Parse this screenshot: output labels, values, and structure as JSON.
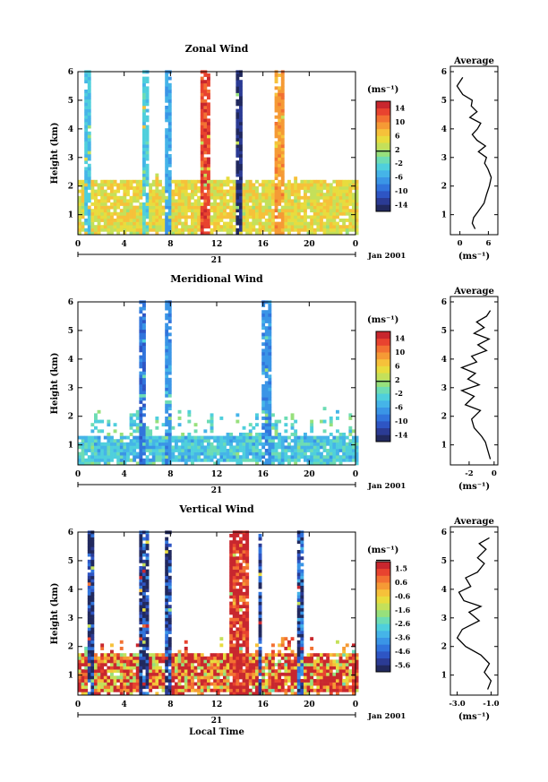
{
  "chart_data": [
    {
      "type": "heatmap",
      "title": "Zonal Wind",
      "ylabel": "Height (km)",
      "xlim": [
        0,
        24
      ],
      "ylim": [
        0.3,
        6
      ],
      "xticks": [
        "0",
        "4",
        "8",
        "12",
        "16",
        "20",
        "0"
      ],
      "yticks": [
        "1",
        "2",
        "3",
        "4",
        "5",
        "6"
      ],
      "date_day": "21",
      "date_label": "Jan 2001",
      "colorbar": {
        "unit": "(ms⁻¹)",
        "ticks": [
          "14",
          "10",
          "6",
          "2",
          "-2",
          "-6",
          "-10",
          "-14"
        ],
        "range": [
          -16,
          16
        ],
        "zero_at": 1.5
      },
      "average": {
        "title": "Average",
        "xlabel": "(ms⁻¹)",
        "xticks": [
          "0",
          "6"
        ],
        "xlim": [
          -2,
          8
        ],
        "profile": [
          [
            3.2,
            0.5
          ],
          [
            2.6,
            0.7
          ],
          [
            2.9,
            0.9
          ],
          [
            3.8,
            1.1
          ],
          [
            5.1,
            1.4
          ],
          [
            5.6,
            1.7
          ],
          [
            6.2,
            2.0
          ],
          [
            6.6,
            2.3
          ],
          [
            5.9,
            2.6
          ],
          [
            5.2,
            2.8
          ],
          [
            5.6,
            3.0
          ],
          [
            3.9,
            3.2
          ],
          [
            5.4,
            3.4
          ],
          [
            3.6,
            3.6
          ],
          [
            2.6,
            3.8
          ],
          [
            3.7,
            4.0
          ],
          [
            4.4,
            4.2
          ],
          [
            2.1,
            4.4
          ],
          [
            3.6,
            4.6
          ],
          [
            2.4,
            4.8
          ],
          [
            2.6,
            5.0
          ],
          [
            0.6,
            5.2
          ],
          [
            -0.6,
            5.5
          ],
          [
            0.6,
            5.8
          ]
        ]
      },
      "model": {
        "base": 4,
        "bandFrom": 0.4,
        "bandTo": 2.2,
        "bandVal": 5,
        "bands": [
          [
            10.5,
            11.5,
            13
          ],
          [
            13.7,
            14.2,
            -14
          ],
          [
            0.6,
            1.0,
            -4
          ],
          [
            5.6,
            6.2,
            -3
          ],
          [
            7.6,
            8.0,
            -6
          ],
          [
            17.0,
            17.8,
            9
          ]
        ]
      }
    },
    {
      "type": "heatmap",
      "title": "Meridional Wind",
      "ylabel": "Height (km)",
      "xlim": [
        0,
        24
      ],
      "ylim": [
        0.3,
        6
      ],
      "xticks": [
        "0",
        "4",
        "8",
        "12",
        "16",
        "20",
        "0"
      ],
      "yticks": [
        "1",
        "2",
        "3",
        "4",
        "5",
        "6"
      ],
      "date_day": "21",
      "date_label": "Jan 2001",
      "colorbar": {
        "unit": "(ms⁻¹)",
        "ticks": [
          "14",
          "10",
          "6",
          "2",
          "-2",
          "-6",
          "-10",
          "-14"
        ],
        "range": [
          -16,
          16
        ],
        "zero_at": 1.5
      },
      "average": {
        "title": "Average",
        "xlabel": "(ms⁻¹)",
        "xticks": [
          "-2",
          "0"
        ],
        "xlim": [
          -3.5,
          0.3
        ],
        "profile": [
          [
            -0.3,
            0.5
          ],
          [
            -0.5,
            0.8
          ],
          [
            -0.7,
            1.1
          ],
          [
            -1.0,
            1.3
          ],
          [
            -1.6,
            1.6
          ],
          [
            -1.8,
            1.9
          ],
          [
            -1.1,
            2.2
          ],
          [
            -2.3,
            2.4
          ],
          [
            -1.6,
            2.7
          ],
          [
            -2.6,
            2.9
          ],
          [
            -1.2,
            3.1
          ],
          [
            -2.1,
            3.3
          ],
          [
            -1.5,
            3.5
          ],
          [
            -2.6,
            3.7
          ],
          [
            -1.4,
            3.9
          ],
          [
            -1.8,
            4.1
          ],
          [
            -0.6,
            4.3
          ],
          [
            -1.3,
            4.5
          ],
          [
            -0.4,
            4.7
          ],
          [
            -1.6,
            4.9
          ],
          [
            -0.8,
            5.1
          ],
          [
            -1.4,
            5.3
          ],
          [
            -0.6,
            5.5
          ],
          [
            -0.3,
            5.7
          ]
        ]
      },
      "model": {
        "base": -2,
        "bandFrom": 0.4,
        "bandTo": 1.3,
        "bandVal": -4,
        "bands": [
          [
            5.4,
            5.9,
            -9
          ],
          [
            7.5,
            8.0,
            -7
          ],
          [
            16.0,
            16.6,
            -7
          ]
        ]
      }
    },
    {
      "type": "heatmap",
      "title": "Vertical Wind",
      "ylabel": "Height (km)",
      "xlabel": "Local Time",
      "xlim": [
        0,
        24
      ],
      "ylim": [
        0.3,
        6
      ],
      "xticks": [
        "0",
        "4",
        "8",
        "12",
        "16",
        "20",
        "0"
      ],
      "yticks": [
        "1",
        "2",
        "3",
        "4",
        "5",
        "6"
      ],
      "date_day": "21",
      "date_label": "Jan 2001",
      "colorbar": {
        "unit": "(ms⁻¹)",
        "ticks": [
          "1.5",
          "0.6",
          "-0.6",
          "-1.6",
          "-2.6",
          "-3.6",
          "-4.6",
          "-5.6"
        ],
        "range": [
          -6.0,
          2.0
        ],
        "zero_at": 2.1
      },
      "average": {
        "title": "Average",
        "xlabel": "(ms⁻¹)",
        "xticks": [
          "-3.0",
          "-1.0"
        ],
        "xlim": [
          -3.4,
          -0.6
        ],
        "profile": [
          [
            -1.2,
            0.5
          ],
          [
            -1.0,
            0.8
          ],
          [
            -1.4,
            1.1
          ],
          [
            -1.1,
            1.4
          ],
          [
            -1.6,
            1.7
          ],
          [
            -2.5,
            2.0
          ],
          [
            -3.0,
            2.3
          ],
          [
            -2.7,
            2.6
          ],
          [
            -1.7,
            2.9
          ],
          [
            -2.3,
            3.2
          ],
          [
            -1.6,
            3.4
          ],
          [
            -2.6,
            3.6
          ],
          [
            -2.9,
            3.9
          ],
          [
            -2.2,
            4.1
          ],
          [
            -2.5,
            4.4
          ],
          [
            -1.8,
            4.6
          ],
          [
            -1.4,
            4.9
          ],
          [
            -1.8,
            5.1
          ],
          [
            -1.3,
            5.4
          ],
          [
            -1.7,
            5.6
          ],
          [
            -1.1,
            5.8
          ]
        ]
      },
      "model": {
        "base": 0.5,
        "bandFrom": 0.4,
        "bandTo": 1.8,
        "bandVal": 1.0,
        "bands": [
          [
            0.7,
            1.3,
            -5.5
          ],
          [
            5.4,
            6.2,
            -5.3
          ],
          [
            7.4,
            8.0,
            -5.0
          ],
          [
            13.0,
            14.8,
            1.8
          ],
          [
            15.5,
            16.0,
            -5.0
          ],
          [
            19.0,
            19.4,
            -4.8
          ]
        ]
      }
    }
  ]
}
